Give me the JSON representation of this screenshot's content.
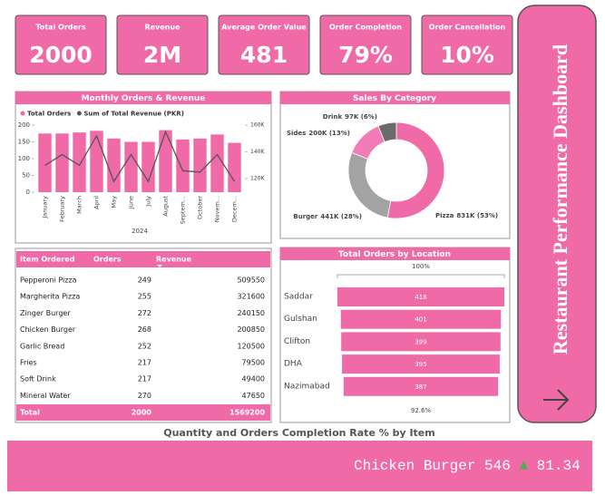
{
  "dashboard_title": "Restaurant Performance Dashboard",
  "kpis": [
    {
      "label": "Total Orders",
      "value": "2000"
    },
    {
      "label": "Revenue",
      "value": "2M"
    },
    {
      "label": "Average Order Value",
      "value": "481"
    },
    {
      "label": "Order Completion",
      "value": "79%"
    },
    {
      "label": "Order Cancellation",
      "value": "10%"
    }
  ],
  "chart_data": [
    {
      "type": "bar",
      "title": "Monthly Orders & Revenue",
      "categories": [
        "January",
        "February",
        "March",
        "April",
        "May",
        "June",
        "July",
        "August",
        "Septem...",
        "October",
        "Novem...",
        "Decem..."
      ],
      "series": [
        {
          "name": "Total Orders",
          "color": "#f06aa8",
          "values": [
            175,
            175,
            178,
            183,
            160,
            150,
            150,
            185,
            157,
            160,
            172,
            147
          ]
        },
        {
          "name": "Sum of Total Revenue (PKR)",
          "color": "#555555",
          "type": "line",
          "axis": "y2",
          "values": [
            130000,
            138000,
            130000,
            152000,
            118000,
            138000,
            118000,
            155000,
            126000,
            125000,
            138000,
            118000
          ]
        }
      ],
      "ylim": [
        0,
        200
      ],
      "yticks": [
        0,
        50,
        100,
        150,
        200
      ],
      "y2lim": [
        110000,
        160000
      ],
      "y2ticks": [
        {
          "value": 120000,
          "label": "120K"
        },
        {
          "value": 140000,
          "label": "140K"
        },
        {
          "value": 160000,
          "label": "160K"
        }
      ],
      "xlabel": "2024"
    },
    {
      "type": "donut",
      "title": "Sales By Category",
      "categories": [
        "Pizza",
        "Burger",
        "Sides",
        "Drink"
      ],
      "values": [
        831000,
        441000,
        200000,
        97000
      ],
      "value_labels": [
        "831K (53%)",
        "441K (28%)",
        "200K (13%)",
        "97K (6%)"
      ],
      "colors": [
        "#f06aa8",
        "#a3a3a3",
        "#f27db6",
        "#6b6b6b"
      ]
    },
    {
      "type": "funnel",
      "title": "Total Orders by Location",
      "categories": [
        "Saddar",
        "Gulshan",
        "Clifton",
        "DHA",
        "Nazimabad"
      ],
      "values": [
        418,
        401,
        399,
        395,
        387
      ],
      "color": "#f06aa8",
      "top_label": "100%",
      "bottom_label": "92.6%"
    }
  ],
  "table": {
    "header": [
      "Item Ordered",
      "Orders",
      "Revenue"
    ],
    "rows": [
      [
        "Pepperoni Pizza",
        249,
        509550
      ],
      [
        "Margherita Pizza",
        255,
        321600
      ],
      [
        "Zinger Burger",
        272,
        240150
      ],
      [
        "Chicken Burger",
        268,
        200850
      ],
      [
        "Garlic Bread",
        252,
        120500
      ],
      [
        "Fries",
        217,
        79500
      ],
      [
        "Soft Drink",
        217,
        49400
      ],
      [
        "Mineral Water",
        270,
        47650
      ]
    ],
    "total": [
      "Total",
      2000,
      1569200
    ]
  },
  "ticker_title": "Quantity and Orders Completion Rate % by Item",
  "ticker": {
    "item": "Chicken Burger",
    "quantity": "546",
    "rate": "81.34"
  }
}
